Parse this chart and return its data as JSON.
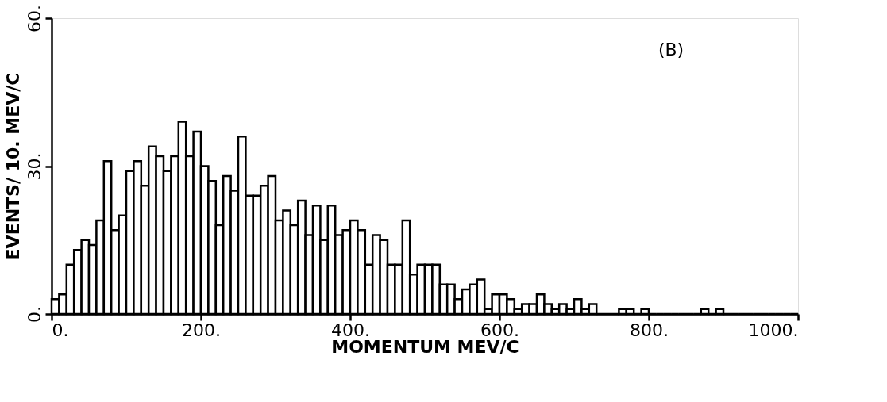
{
  "chart_data": {
    "type": "histogram",
    "xlabel": "MOMENTUM MEV/C",
    "ylabel": "EVENTS/ 10. MEV/C",
    "annotations": [
      "(B)"
    ],
    "bins": [
      0,
      10,
      20,
      30,
      40,
      50,
      60,
      70,
      80,
      90,
      100,
      110,
      120,
      130,
      140,
      150,
      160,
      170,
      180,
      190,
      200,
      210,
      220,
      230,
      240,
      250,
      260,
      270,
      280,
      290,
      300,
      310,
      320,
      330,
      340,
      350,
      360,
      370,
      380,
      390,
      400,
      410,
      420,
      430,
      440,
      450,
      460,
      470,
      480,
      490,
      500,
      510,
      520,
      530,
      540,
      550,
      560,
      570,
      580,
      590,
      600,
      610,
      620,
      630,
      640,
      650,
      660,
      670,
      680,
      690,
      700,
      710,
      720,
      730,
      740,
      750,
      760,
      770,
      780,
      790,
      800,
      810,
      820,
      830,
      840,
      850,
      860,
      870,
      880,
      890,
      900,
      910,
      920,
      930,
      940,
      950,
      960,
      970,
      980,
      990,
      1000
    ],
    "values": [
      3,
      4,
      10,
      13,
      15,
      14,
      19,
      31,
      17,
      20,
      29,
      31,
      26,
      34,
      32,
      29,
      32,
      39,
      32,
      37,
      30,
      27,
      18,
      28,
      25,
      36,
      24,
      24,
      26,
      28,
      19,
      21,
      18,
      23,
      16,
      22,
      15,
      22,
      16,
      17,
      19,
      17,
      10,
      16,
      15,
      10,
      10,
      19,
      8,
      10,
      10,
      10,
      6,
      6,
      3,
      5,
      6,
      7,
      1,
      4,
      4,
      3,
      1,
      2,
      2,
      4,
      2,
      1,
      2,
      1,
      3,
      1,
      2,
      0,
      0,
      0,
      1,
      1,
      0,
      1,
      0,
      0,
      0,
      0,
      0,
      0,
      0,
      1,
      0,
      1,
      0,
      0,
      0,
      0,
      0,
      0,
      0,
      0,
      0,
      0
    ],
    "color": "#000000",
    "xlim": [
      0,
      1000
    ],
    "xticks": [
      {
        "value": 0,
        "label": "0."
      },
      {
        "value": 200,
        "label": "200."
      },
      {
        "value": 400,
        "label": "400."
      },
      {
        "value": 600,
        "label": "600."
      },
      {
        "value": 800,
        "label": "800."
      },
      {
        "value": 1000,
        "label": "1000."
      }
    ],
    "ylim": [
      0,
      60
    ],
    "yticks": [
      {
        "value": 0,
        "label": "0."
      },
      {
        "value": 30,
        "label": "30."
      },
      {
        "value": 60,
        "label": "60."
      }
    ],
    "grid": false
  }
}
